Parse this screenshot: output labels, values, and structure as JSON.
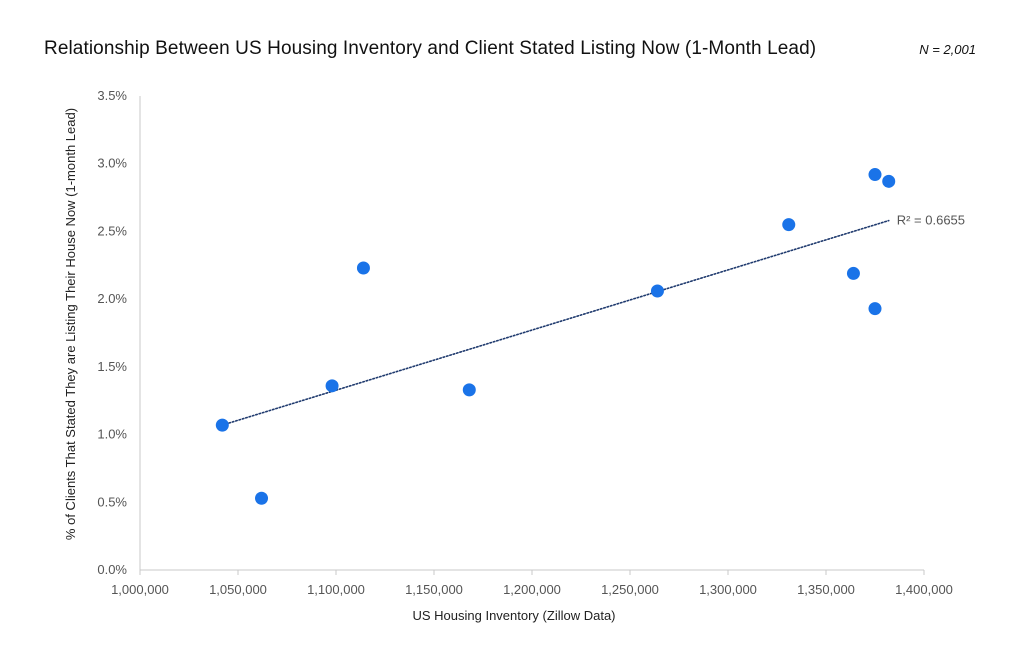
{
  "header": {
    "title": "Relationship Between US Housing Inventory and Client Stated Listing Now (1-Month Lead)",
    "n_label": "N = 2,001"
  },
  "colors": {
    "point": "#1a73e8",
    "trendline": "#1f3a6e",
    "axis": "#c8c8c8",
    "text": "#555555"
  },
  "chart_data": {
    "type": "scatter",
    "title": "Relationship Between US Housing Inventory and Client Stated Listing Now (1-Month Lead)",
    "xlabel": "US Housing Inventory (Zillow Data)",
    "ylabel": "% of Clients That Stated They are Listing Their House Now (1-month Lead)",
    "xlim": [
      1000000,
      1400000
    ],
    "ylim": [
      0,
      3.5
    ],
    "x_ticks": [
      1000000,
      1050000,
      1100000,
      1150000,
      1200000,
      1250000,
      1300000,
      1350000,
      1400000
    ],
    "x_tick_labels": [
      "1,000,000",
      "1,050,000",
      "1,100,000",
      "1,150,000",
      "1,200,000",
      "1,250,000",
      "1,300,000",
      "1,350,000",
      "1,400,000"
    ],
    "y_ticks": [
      0,
      0.5,
      1.0,
      1.5,
      2.0,
      2.5,
      3.0,
      3.5
    ],
    "y_tick_labels": [
      "0.0%",
      "0.5%",
      "1.0%",
      "1.5%",
      "2.0%",
      "2.5%",
      "3.0%",
      "3.5%"
    ],
    "grid": false,
    "legend": "none",
    "points": [
      {
        "x": 1042000,
        "y": 1.07
      },
      {
        "x": 1062000,
        "y": 0.53
      },
      {
        "x": 1098000,
        "y": 1.36
      },
      {
        "x": 1114000,
        "y": 2.23
      },
      {
        "x": 1168000,
        "y": 1.33
      },
      {
        "x": 1264000,
        "y": 2.06
      },
      {
        "x": 1331000,
        "y": 2.55
      },
      {
        "x": 1364000,
        "y": 2.19
      },
      {
        "x": 1375000,
        "y": 2.92
      },
      {
        "x": 1382000,
        "y": 2.87
      },
      {
        "x": 1375000,
        "y": 1.93
      }
    ],
    "trendline": {
      "type": "linear",
      "style": "dotted",
      "x": [
        1042000,
        1382000
      ],
      "y": [
        1.07,
        2.58
      ],
      "label": "R² = 0.6655"
    }
  }
}
